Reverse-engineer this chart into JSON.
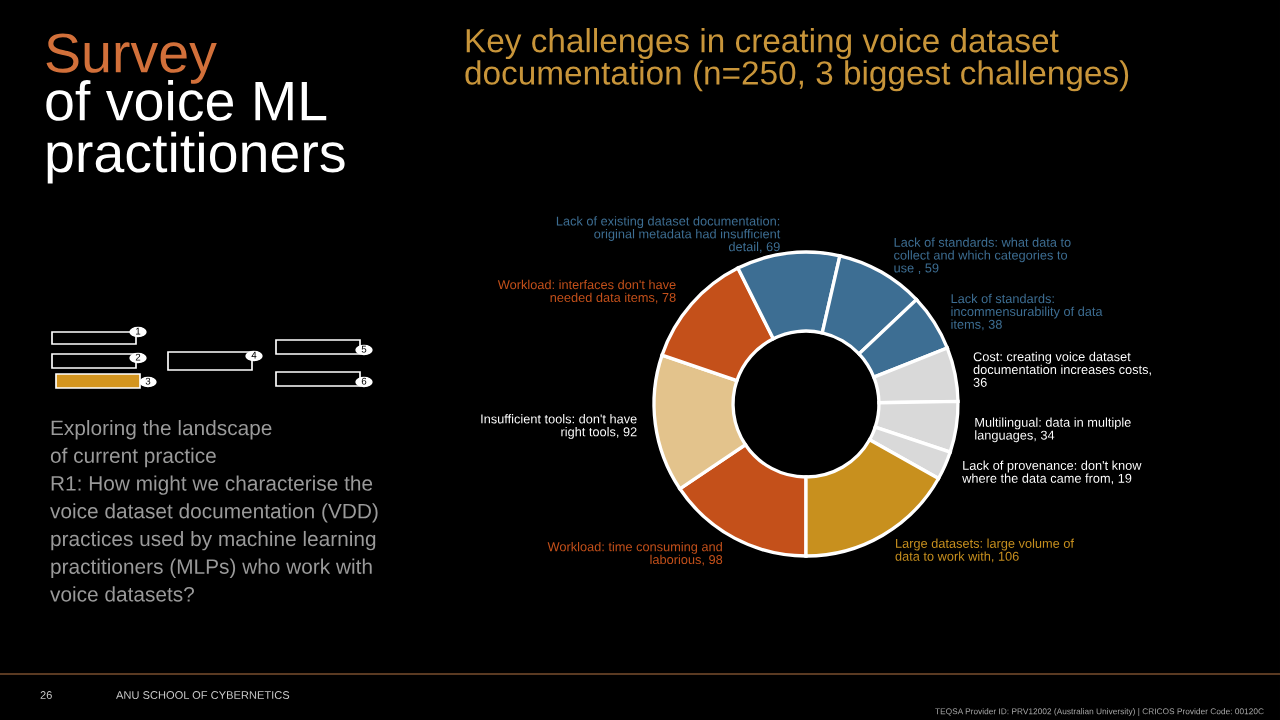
{
  "chart_data": {
    "type": "donut",
    "title": "Key challenges in creating voice dataset\ndocumentation (n=250, 3 biggest challenges)",
    "categories": [
      "Workload: time consuming and\nlaborious, 98",
      "Insufficient tools: don't have\nright tools, 92",
      "Workload: interfaces don't have\nneeded data items, 78",
      "Lack of existing dataset documentation:\noriginal metadata had insufficient\ndetail, 69",
      "Lack of standards: what data to\ncollect and which categories to\nuse , 59",
      "Lack of standards:\nincommensurability of data\nitems, 38",
      "Cost: creating voice dataset\ndocumentation increases costs,\n36",
      "Multilingual: data in multiple\nlanguages, 34",
      "Lack of provenance: don't know\nwhere the data came from, 19",
      "Large datasets: large volume of\ndata to work with, 106"
    ],
    "values": [
      98,
      92,
      78,
      69,
      59,
      38,
      36,
      34,
      19,
      106
    ],
    "colors": [
      "#c4501a",
      "#e3c38c",
      "#c4501a",
      "#3d6e93",
      "#3d6e93",
      "#3d6e93",
      "#d9d9d9",
      "#d9d9d9",
      "#d9d9d9",
      "#c8901e"
    ],
    "legend": false,
    "annotations": [
      "Survey",
      "of voice ML\npractitioners",
      "Exploring the landscape\nof current practice\nR1: How might we characterise the\nvoice dataset documentation (VDD)\npractices used by machine learning\npractitioners (MLPs) who work with\nvoice datasets?",
      "26",
      "ANU SCHOOL OF CYBERNETICS",
      "TEQSA Provider ID: PRV12002 (Australian University) | CRICOS Provider Code: 00120C",
      "1",
      "2",
      "3",
      "4",
      "5",
      "6"
    ]
  }
}
